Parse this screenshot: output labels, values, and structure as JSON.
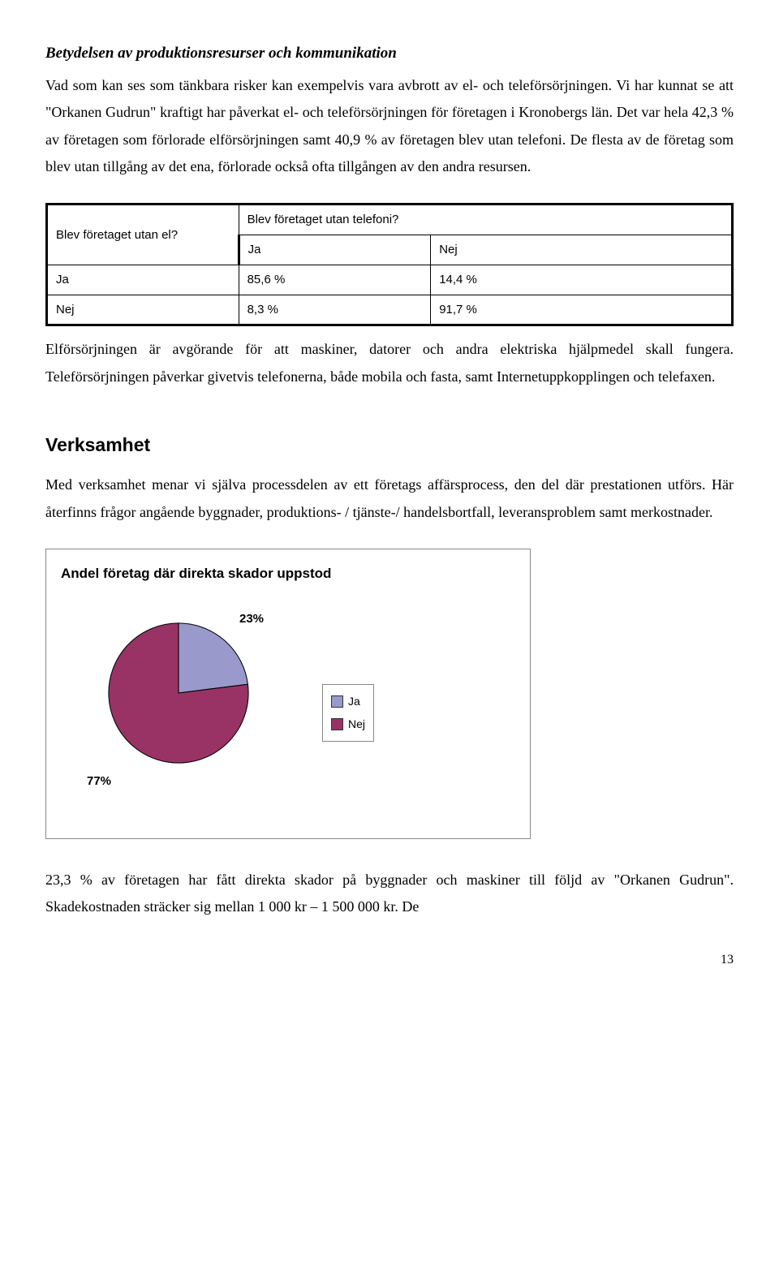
{
  "heading_italic": "Betydelsen av produktionsresurser och kommunikation",
  "para1": "Vad som kan ses som tänkbara risker kan exempelvis vara avbrott av el- och teleförsörjningen. Vi har kunnat se att \"Orkanen Gudrun\" kraftigt har påverkat el- och teleförsörjningen för företagen i Kronobergs län. Det var hela 42,3 % av företagen som förlorade elförsörjningen samt 40,9 % av företagen blev utan telefoni. De flesta av de företag som blev utan tillgång av det ena, förlorade också ofta tillgången av den andra resursen.",
  "table": {
    "row_question": "Blev företaget utan el?",
    "col_question": "Blev företaget utan telefoni?",
    "col_labels": [
      "Ja",
      "Nej"
    ],
    "rows": [
      {
        "label": "Ja",
        "cells": [
          "85,6 %",
          "14,4 %"
        ]
      },
      {
        "label": "Nej",
        "cells": [
          "8,3 %",
          "91,7 %"
        ]
      }
    ]
  },
  "para2": "Elförsörjningen är avgörande för att maskiner, datorer och andra elektriska hjälpmedel skall fungera. Teleförsörjningen påverkar givetvis telefonerna, både mobila och fasta, samt Internetuppkopplingen och telefaxen.",
  "section2_title": "Verksamhet",
  "para3": "Med verksamhet menar vi själva processdelen av ett företags affärsprocess, den del där prestationen utförs. Här återfinns frågor angående byggnader, produktions- / tjänste-/ handelsbortfall, leveransproblem samt merkostnader.",
  "chart": {
    "type": "pie",
    "title": "Andel företag där direkta skador uppstod",
    "slices": [
      {
        "label": "Ja",
        "value": 23,
        "display": "23%",
        "color": "#9999cc"
      },
      {
        "label": "Nej",
        "value": 77,
        "display": "77%",
        "color": "#993366"
      }
    ],
    "background_color": "#ffffff",
    "border_color": "#888888",
    "label_fontsize": 15,
    "title_fontsize": 17,
    "slice_border": "#000000"
  },
  "para4": "23,3 % av företagen har fått direkta skador på byggnader och maskiner till följd av \"Orkanen Gudrun\". Skadekostnaden sträcker sig mellan 1 000 kr – 1 500 000 kr. De",
  "page_number": "13"
}
